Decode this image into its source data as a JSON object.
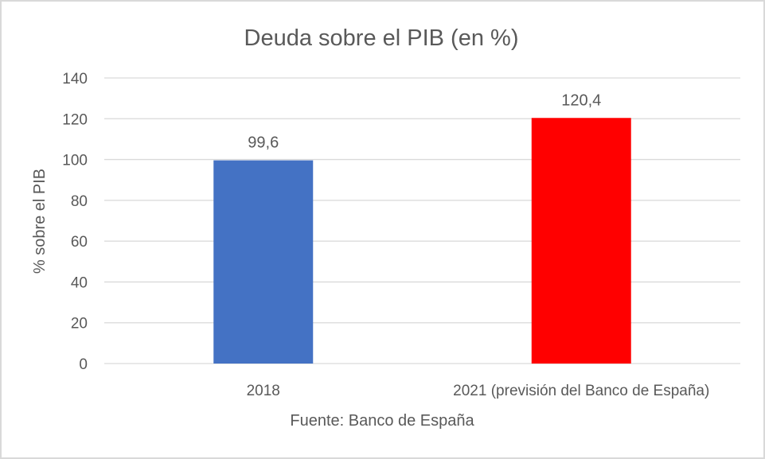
{
  "chart_data": {
    "type": "bar",
    "title": "Deuda sobre el PIB (en %)",
    "xlabel": "Fuente: Banco de España",
    "ylabel": "% sobre el PIB",
    "categories": [
      "2018",
      "2021 (previsión del Banco de España)"
    ],
    "values": [
      99.6,
      120.4
    ],
    "data_labels": [
      "99,6",
      "120,4"
    ],
    "colors": [
      "#4472C4",
      "#FF0000"
    ],
    "ylim": [
      0,
      140
    ],
    "yticks": [
      0,
      20,
      40,
      60,
      80,
      100,
      120,
      140
    ],
    "grid": true,
    "legend": "none"
  }
}
